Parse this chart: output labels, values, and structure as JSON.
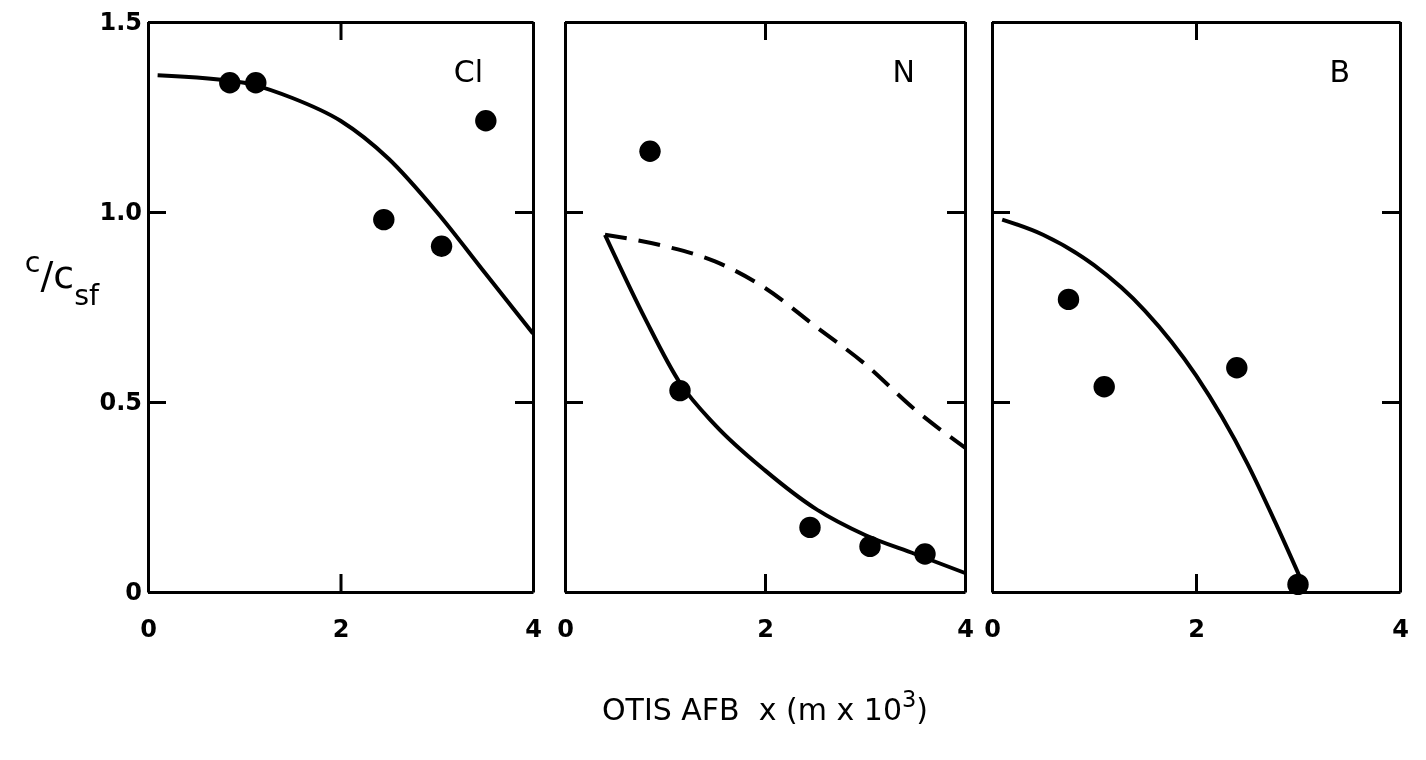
{
  "chart_data": [
    {
      "type": "scatter",
      "ylabel": "$^{c}$/c$_{sf}$",
      "annotations": [
        "Cl"
      ],
      "xlim": [
        0,
        4
      ],
      "ylim": [
        0,
        1.5
      ],
      "xticks": [
        0,
        2,
        4
      ],
      "yticks": [
        0,
        0.5,
        {
          "value": 1,
          "label": "1.0"
        },
        1.5
      ],
      "grid": false,
      "series": [
        {
          "marker": "circle",
          "color": "#000000",
          "x": [
            0.85,
            1.12,
            2.45,
            3.05,
            3.51
          ],
          "values": [
            1.34,
            1.34,
            0.98,
            0.91,
            1.24
          ]
        },
        {
          "type": "line",
          "line_style": "solid",
          "color": "#000000",
          "x": [
            0.1,
            1.0,
            1.5,
            2.0,
            2.5,
            3.0,
            3.5,
            4.0
          ],
          "values": [
            1.36,
            1.34,
            1.3,
            1.24,
            1.14,
            1.0,
            0.84,
            0.68
          ]
        }
      ]
    },
    {
      "type": "scatter",
      "xlabel": "OTIS AFB  x (m x 10$^{3}$)",
      "annotations": [
        "N"
      ],
      "xlim": [
        0,
        4
      ],
      "ylim": [
        0,
        1.5
      ],
      "xticks": [
        0,
        2,
        4
      ],
      "yticks": [
        0,
        0.5,
        1,
        1.5
      ],
      "tick_labels": "x",
      "grid": false,
      "series": [
        {
          "marker": "circle",
          "color": "#000000",
          "x": [
            0.85,
            1.15,
            2.45,
            3.05,
            3.6
          ],
          "values": [
            1.16,
            0.53,
            0.17,
            0.12,
            0.1
          ]
        },
        {
          "type": "line",
          "line_style": "solid",
          "color": "#000000",
          "x": [
            0.4,
            0.8,
            1.15,
            1.5,
            2.0,
            2.5,
            3.0,
            3.5,
            4.0
          ],
          "values": [
            0.94,
            0.72,
            0.55,
            0.44,
            0.32,
            0.22,
            0.15,
            0.1,
            0.05
          ]
        },
        {
          "type": "line",
          "line_style": "dashed",
          "color": "#000000",
          "x": [
            0.4,
            1.0,
            1.5,
            2.0,
            2.5,
            3.0,
            3.5,
            4.0
          ],
          "values": [
            0.94,
            0.91,
            0.87,
            0.8,
            0.7,
            0.6,
            0.48,
            0.38
          ]
        }
      ]
    },
    {
      "type": "scatter",
      "annotations": [
        "B"
      ],
      "xlim": [
        0,
        4
      ],
      "ylim": [
        0,
        1.5
      ],
      "xticks": [
        0,
        2,
        4
      ],
      "yticks": [
        0,
        0.5,
        1,
        1.5
      ],
      "tick_labels": "x",
      "grid": false,
      "series": [
        {
          "marker": "circle",
          "color": "#000000",
          "x": [
            0.75,
            1.1,
            2.4,
            3.0
          ],
          "values": [
            0.77,
            0.54,
            0.59,
            0.02
          ]
        },
        {
          "type": "line",
          "line_style": "solid",
          "color": "#000000",
          "x": [
            0.1,
            0.5,
            1.0,
            1.5,
            2.0,
            2.5,
            2.8,
            3.05
          ],
          "values": [
            0.98,
            0.94,
            0.86,
            0.74,
            0.57,
            0.34,
            0.17,
            0.02
          ]
        }
      ]
    }
  ]
}
